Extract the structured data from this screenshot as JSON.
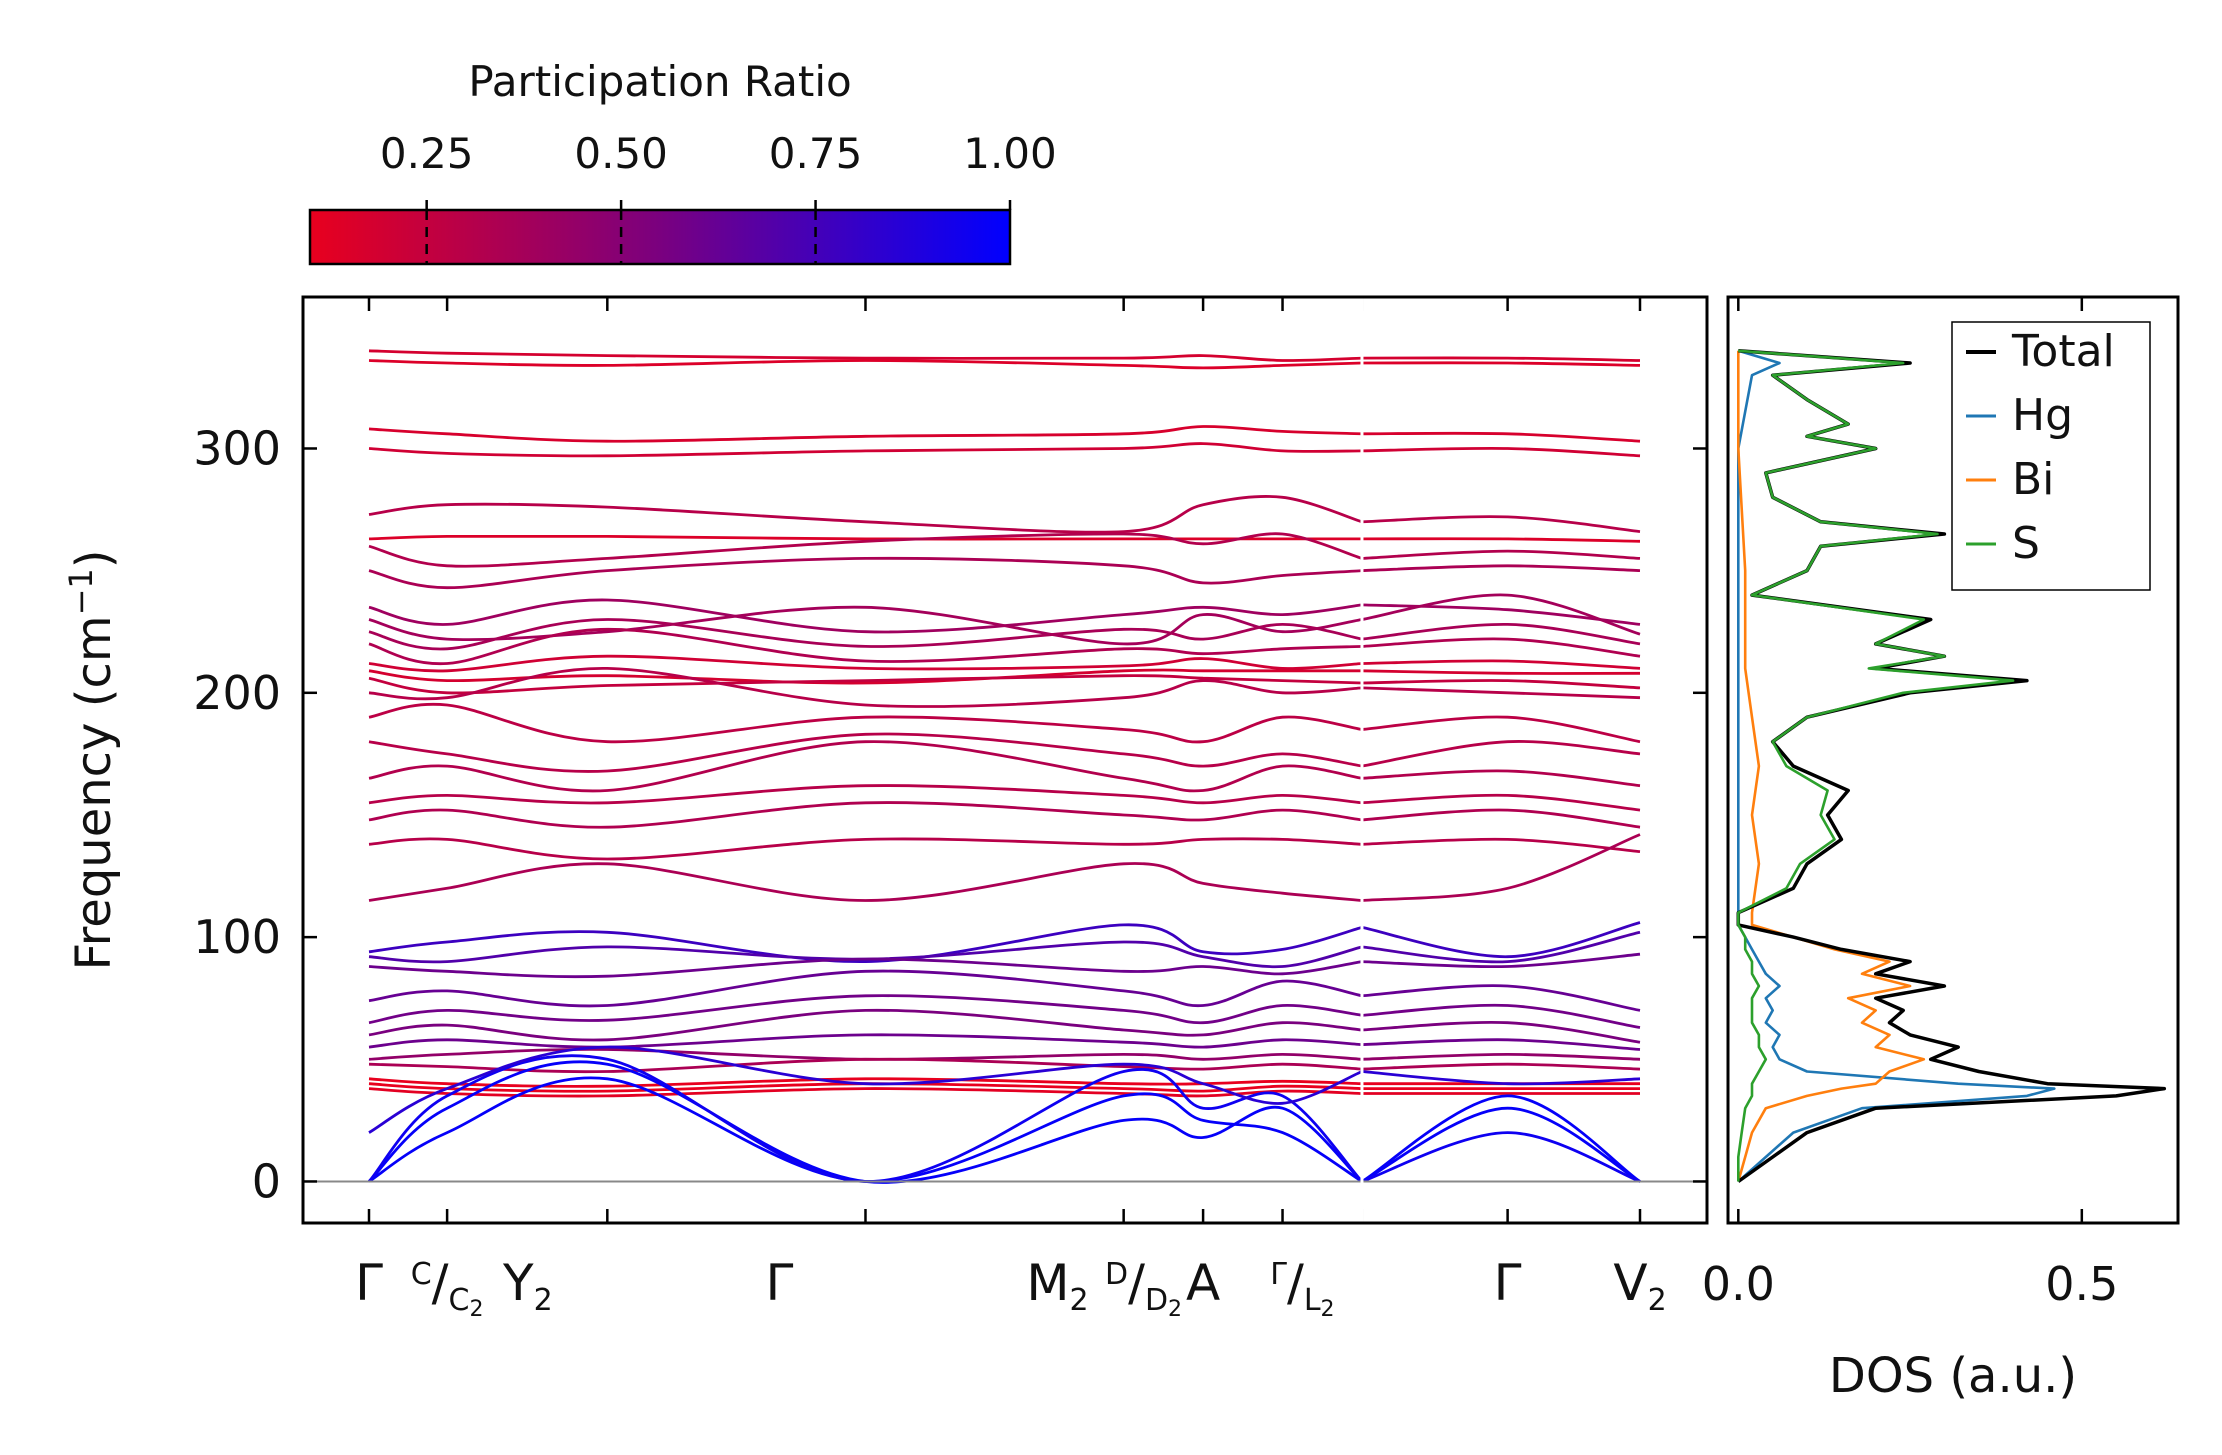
{
  "chart_data": [
    {
      "type": "line",
      "title": "",
      "ylabel": "Frequency (cm⁻¹)",
      "ylabel_main": "Frequency (cm",
      "ylabel_sup": "−1",
      "ylabel_close": ")",
      "ylim": [
        -17,
        362
      ],
      "yticks": [
        0,
        100,
        200,
        300
      ],
      "path_segments": 2,
      "kpoint_positions": [
        0,
        0.59,
        1.8,
        3.75,
        5.7,
        6.3,
        6.9,
        7.5,
        8.6,
        9.6
      ],
      "kpoint_labels": [
        {
          "pos": 0.0,
          "main": "Γ"
        },
        {
          "pos": 0.59,
          "sup": "C",
          "slash": "/",
          "main": "C",
          "sub": "2"
        },
        {
          "pos": 1.2,
          "main": "Y",
          "sub": "2"
        },
        {
          "pos": 3.1,
          "main": "Γ"
        },
        {
          "pos": 5.2,
          "main": "M",
          "sub": "2"
        },
        {
          "pos": 5.85,
          "sup": "D",
          "slash": "/",
          "main": "D",
          "sub": "2"
        },
        {
          "pos": 6.3,
          "main": "A"
        },
        {
          "pos": 7.05,
          "sup": "Γ",
          "slash": "/",
          "main": "L",
          "sub": "2"
        },
        {
          "pos": 8.6,
          "main": "Γ"
        },
        {
          "pos": 9.6,
          "main": "V",
          "sub": "2"
        }
      ],
      "colormap": {
        "name": "participation-ratio",
        "low_color": "#e8001e",
        "mid_color": "#7a007f",
        "high_color": "#0000ff",
        "range": [
          0.1,
          1.0
        ]
      },
      "colorbar": {
        "title": "Participation Ratio",
        "ticks": [
          0.25,
          0.5,
          0.75,
          1.0
        ],
        "tick_labels": [
          "0.25",
          "0.50",
          "0.75",
          "1.00"
        ]
      },
      "optical_bands": [
        {
          "y": [
            340,
            339,
            338,
            337,
            337,
            338,
            336,
            337,
            337,
            336
          ],
          "pr": 0.18
        },
        {
          "y": [
            336,
            335,
            334,
            336,
            334,
            333,
            334,
            335,
            335,
            334
          ],
          "pr": 0.15
        },
        {
          "y": [
            308,
            306,
            303,
            305,
            306,
            309,
            307,
            306,
            306,
            303
          ],
          "pr": 0.17
        },
        {
          "y": [
            300,
            298,
            297,
            299,
            300,
            302,
            299,
            299,
            300,
            297
          ],
          "pr": 0.2
        },
        {
          "y": [
            273,
            277,
            276,
            270,
            266,
            277,
            280,
            270,
            272,
            266
          ],
          "pr": 0.3
        },
        {
          "y": [
            263,
            264,
            264,
            263,
            263,
            263,
            263,
            263,
            263,
            262
          ],
          "pr": 0.15
        },
        {
          "y": [
            260,
            252,
            255,
            262,
            265,
            261,
            265,
            255,
            258,
            255
          ],
          "pr": 0.32
        },
        {
          "y": [
            250,
            243,
            250,
            255,
            252,
            245,
            248,
            250,
            252,
            250
          ],
          "pr": 0.35
        },
        {
          "y": [
            235,
            228,
            238,
            225,
            232,
            235,
            232,
            236,
            234,
            228
          ],
          "pr": 0.4
        },
        {
          "y": [
            230,
            222,
            225,
            235,
            220,
            232,
            225,
            230,
            240,
            224
          ],
          "pr": 0.38
        },
        {
          "y": [
            225,
            218,
            230,
            219,
            226,
            222,
            228,
            222,
            228,
            220
          ],
          "pr": 0.36
        },
        {
          "y": [
            220,
            212,
            226,
            213,
            218,
            216,
            218,
            219,
            222,
            215
          ],
          "pr": 0.33
        },
        {
          "y": [
            212,
            209,
            215,
            210,
            211,
            214,
            210,
            212,
            213,
            210
          ],
          "pr": 0.2
        },
        {
          "y": [
            209,
            205,
            207,
            204,
            209,
            209,
            209,
            209,
            208,
            208
          ],
          "pr": 0.18
        },
        {
          "y": [
            206,
            200,
            203,
            205,
            207,
            206,
            205,
            204,
            205,
            202
          ],
          "pr": 0.25
        },
        {
          "y": [
            200,
            198,
            210,
            195,
            198,
            205,
            200,
            202,
            200,
            198
          ],
          "pr": 0.3
        },
        {
          "y": [
            190,
            195,
            180,
            190,
            185,
            180,
            190,
            185,
            190,
            180
          ],
          "pr": 0.28
        },
        {
          "y": [
            180,
            175,
            168,
            183,
            175,
            170,
            175,
            170,
            180,
            175
          ],
          "pr": 0.3
        },
        {
          "y": [
            165,
            170,
            160,
            180,
            165,
            160,
            170,
            165,
            168,
            162
          ],
          "pr": 0.32
        },
        {
          "y": [
            155,
            158,
            155,
            162,
            158,
            155,
            158,
            155,
            158,
            152
          ],
          "pr": 0.3
        },
        {
          "y": [
            148,
            152,
            145,
            155,
            150,
            148,
            152,
            148,
            152,
            145
          ],
          "pr": 0.33
        },
        {
          "y": [
            138,
            140,
            132,
            140,
            138,
            140,
            140,
            138,
            140,
            135
          ],
          "pr": 0.3
        },
        {
          "y": [
            115,
            120,
            130,
            115,
            130,
            122,
            118,
            115,
            120,
            142
          ],
          "pr": 0.35
        }
      ],
      "acoustic_bands": [
        {
          "y": [
            0,
            30,
            48,
            0,
            25,
            18,
            30,
            0,
            35,
            0
          ],
          "pr": 0.98
        },
        {
          "y": [
            0,
            20,
            42,
            0,
            35,
            25,
            20,
            0,
            30,
            0
          ],
          "pr": 0.98
        },
        {
          "y": [
            0,
            35,
            50,
            0,
            45,
            30,
            35,
            0,
            20,
            0
          ],
          "pr": 0.95
        },
        {
          "y": [
            20,
            38,
            55,
            40,
            48,
            40,
            32,
            45,
            40,
            42
          ],
          "pr": 0.85
        }
      ],
      "low_bands": [
        {
          "y": [
            94,
            98,
            102,
            90,
            105,
            94,
            95,
            104,
            92,
            106
          ],
          "pr": 0.78
        },
        {
          "y": [
            92,
            90,
            96,
            91,
            98,
            92,
            88,
            96,
            90,
            102
          ],
          "pr": 0.7
        },
        {
          "y": [
            88,
            86,
            84,
            91,
            86,
            88,
            85,
            90,
            88,
            93
          ],
          "pr": 0.6
        },
        {
          "y": [
            74,
            78,
            72,
            86,
            78,
            72,
            82,
            76,
            80,
            70
          ],
          "pr": 0.62
        },
        {
          "y": [
            65,
            70,
            66,
            76,
            70,
            65,
            72,
            68,
            72,
            63
          ],
          "pr": 0.58
        },
        {
          "y": [
            60,
            64,
            58,
            70,
            62,
            60,
            65,
            62,
            65,
            57
          ],
          "pr": 0.55
        },
        {
          "y": [
            55,
            58,
            55,
            60,
            57,
            55,
            58,
            56,
            58,
            54
          ],
          "pr": 0.6
        },
        {
          "y": [
            50,
            52,
            54,
            50,
            52,
            50,
            52,
            50,
            52,
            50
          ],
          "pr": 0.45
        },
        {
          "y": [
            48,
            47,
            45,
            50,
            47,
            46,
            48,
            46,
            48,
            46
          ],
          "pr": 0.35
        },
        {
          "y": [
            42,
            40,
            39,
            42,
            40,
            40,
            41,
            40,
            40,
            40
          ],
          "pr": 0.1
        },
        {
          "y": [
            40,
            38,
            37,
            40,
            38,
            37,
            39,
            38,
            38,
            38
          ],
          "pr": 0.1
        },
        {
          "y": [
            38,
            36,
            35,
            38,
            36,
            35,
            37,
            36,
            36,
            36
          ],
          "pr": 0.12
        }
      ]
    },
    {
      "type": "line",
      "title": "",
      "xlabel": "DOS (a.u.)",
      "xlim": [
        -0.015,
        0.64
      ],
      "xticks": [
        0.0,
        0.5
      ],
      "xtick_labels": [
        "0.0",
        "0.5"
      ],
      "ylim": [
        -17,
        362
      ],
      "legend": {
        "position": "top-right",
        "entries": [
          "Total",
          "Hg",
          "Bi",
          "S"
        ]
      },
      "series": [
        {
          "name": "Total",
          "color": "#000000",
          "freq": [
            0,
            10,
            20,
            30,
            35,
            38,
            40,
            45,
            50,
            55,
            60,
            65,
            70,
            75,
            80,
            85,
            90,
            95,
            100,
            105,
            110,
            120,
            130,
            140,
            150,
            160,
            170,
            180,
            190,
            200,
            205,
            210,
            215,
            220,
            230,
            240,
            250,
            260,
            265,
            270,
            280,
            290,
            300,
            305,
            310,
            320,
            330,
            335,
            340
          ],
          "dos": [
            0.0,
            0.05,
            0.1,
            0.2,
            0.55,
            0.62,
            0.45,
            0.35,
            0.28,
            0.32,
            0.25,
            0.22,
            0.24,
            0.2,
            0.3,
            0.2,
            0.25,
            0.15,
            0.08,
            0.0,
            0.0,
            0.08,
            0.1,
            0.15,
            0.13,
            0.16,
            0.08,
            0.05,
            0.1,
            0.25,
            0.42,
            0.2,
            0.3,
            0.2,
            0.28,
            0.02,
            0.1,
            0.12,
            0.3,
            0.12,
            0.05,
            0.04,
            0.2,
            0.1,
            0.16,
            0.1,
            0.05,
            0.25,
            0.0
          ]
        },
        {
          "name": "Hg",
          "color": "#1f77b4",
          "freq": [
            0,
            10,
            20,
            30,
            35,
            38,
            40,
            45,
            50,
            55,
            60,
            65,
            70,
            75,
            80,
            85,
            90,
            95,
            100,
            105,
            110,
            150,
            200,
            250,
            300,
            330,
            335,
            340
          ],
          "dos": [
            0.0,
            0.04,
            0.08,
            0.18,
            0.42,
            0.46,
            0.32,
            0.1,
            0.06,
            0.05,
            0.06,
            0.04,
            0.05,
            0.04,
            0.06,
            0.04,
            0.03,
            0.02,
            0.01,
            0.0,
            0.0,
            0.0,
            0.0,
            0.0,
            0.0,
            0.02,
            0.06,
            0.0
          ]
        },
        {
          "name": "Bi",
          "color": "#ff7f0e",
          "freq": [
            0,
            10,
            20,
            30,
            35,
            38,
            40,
            45,
            50,
            55,
            60,
            65,
            70,
            75,
            80,
            85,
            90,
            95,
            100,
            105,
            110,
            130,
            150,
            170,
            190,
            210,
            250,
            300,
            340
          ],
          "dos": [
            0.0,
            0.01,
            0.02,
            0.04,
            0.1,
            0.15,
            0.2,
            0.22,
            0.27,
            0.2,
            0.22,
            0.18,
            0.2,
            0.16,
            0.25,
            0.18,
            0.22,
            0.14,
            0.08,
            0.02,
            0.02,
            0.03,
            0.02,
            0.03,
            0.02,
            0.01,
            0.01,
            0.0,
            0.0
          ]
        },
        {
          "name": "S",
          "color": "#2ca02c",
          "freq": [
            0,
            10,
            20,
            30,
            35,
            38,
            40,
            45,
            50,
            55,
            60,
            65,
            70,
            75,
            80,
            85,
            90,
            95,
            100,
            105,
            110,
            120,
            130,
            140,
            150,
            160,
            170,
            180,
            190,
            200,
            205,
            210,
            215,
            220,
            230,
            240,
            250,
            260,
            265,
            270,
            280,
            290,
            300,
            305,
            310,
            320,
            330,
            335,
            340
          ],
          "dos": [
            0.0,
            0.0,
            0.005,
            0.01,
            0.02,
            0.02,
            0.02,
            0.03,
            0.04,
            0.03,
            0.03,
            0.02,
            0.02,
            0.02,
            0.03,
            0.02,
            0.02,
            0.01,
            0.01,
            0.0,
            0.0,
            0.07,
            0.09,
            0.14,
            0.12,
            0.13,
            0.07,
            0.05,
            0.1,
            0.24,
            0.4,
            0.19,
            0.3,
            0.2,
            0.27,
            0.02,
            0.1,
            0.12,
            0.29,
            0.12,
            0.05,
            0.04,
            0.2,
            0.1,
            0.16,
            0.1,
            0.05,
            0.24,
            0.0
          ]
        }
      ]
    }
  ]
}
